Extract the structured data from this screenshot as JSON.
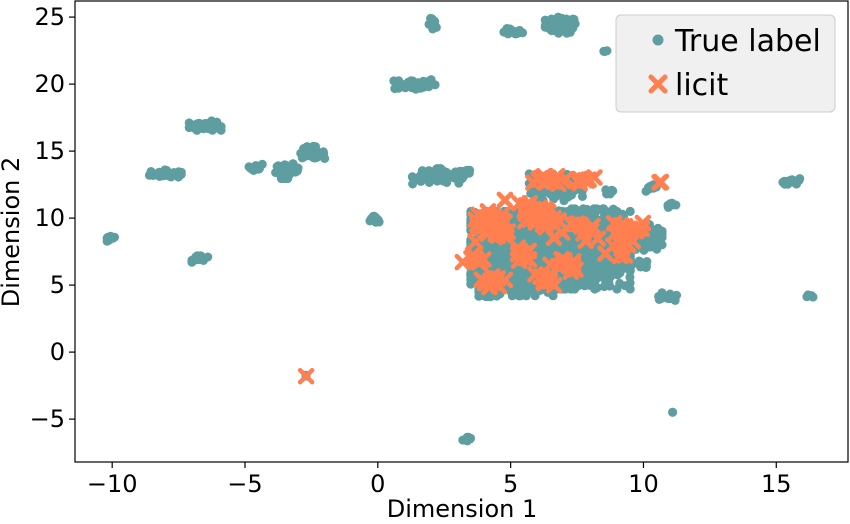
{
  "chart_data": {
    "type": "scatter",
    "xlabel": "Dimension 1",
    "ylabel": "Dimension 2",
    "xlim": [
      -11.4,
      17.7
    ],
    "ylim": [
      -8.2,
      26.2
    ],
    "xticks": [
      -10,
      -5,
      0,
      5,
      10,
      15
    ],
    "yticks": [
      -5,
      0,
      5,
      10,
      15,
      20,
      25
    ],
    "xtick_labels": [
      "−10",
      "−5",
      "0",
      "5",
      "10",
      "15"
    ],
    "ytick_labels": [
      "−5",
      "0",
      "5",
      "10",
      "15",
      "20",
      "25"
    ],
    "grid": false,
    "legend_position": "top-right",
    "series": [
      {
        "name": "True label",
        "marker": "circle",
        "color": "#5f9ea0",
        "clusters": [
          {
            "cx": 6.9,
            "cy": 24.4,
            "rx": 0.6,
            "ry": 0.6,
            "n": 70
          },
          {
            "cx": 5.0,
            "cy": 23.9,
            "rx": 0.45,
            "ry": 0.25,
            "n": 20
          },
          {
            "cx": 2.1,
            "cy": 24.4,
            "rx": 0.2,
            "ry": 0.5,
            "n": 12
          },
          {
            "cx": 1.4,
            "cy": 20.0,
            "rx": 0.8,
            "ry": 0.45,
            "n": 50
          },
          {
            "cx": -6.5,
            "cy": 16.9,
            "rx": 0.6,
            "ry": 0.35,
            "n": 45
          },
          {
            "cx": -8.0,
            "cy": 13.3,
            "rx": 0.6,
            "ry": 0.3,
            "n": 40
          },
          {
            "cx": -4.6,
            "cy": 13.8,
            "rx": 0.25,
            "ry": 0.25,
            "n": 12
          },
          {
            "cx": -3.4,
            "cy": 13.5,
            "rx": 0.45,
            "ry": 0.55,
            "n": 45
          },
          {
            "cx": -2.5,
            "cy": 14.9,
            "rx": 0.5,
            "ry": 0.45,
            "n": 30
          },
          {
            "cx": 2.5,
            "cy": 13.1,
            "rx": 1.2,
            "ry": 0.6,
            "n": 90
          },
          {
            "cx": -0.1,
            "cy": 9.9,
            "rx": 0.2,
            "ry": 0.25,
            "n": 12
          },
          {
            "cx": -10.1,
            "cy": 8.4,
            "rx": 0.25,
            "ry": 0.25,
            "n": 12
          },
          {
            "cx": -6.7,
            "cy": 7.0,
            "rx": 0.3,
            "ry": 0.3,
            "n": 14
          },
          {
            "cx": 6.5,
            "cy": 7.6,
            "rx": 3.0,
            "ry": 2.9,
            "n": 1500
          },
          {
            "cx": 5.2,
            "cy": 5.8,
            "rx": 1.4,
            "ry": 1.6,
            "n": 250
          },
          {
            "cx": 7.9,
            "cy": 9.2,
            "rx": 1.8,
            "ry": 1.5,
            "n": 300
          },
          {
            "cx": 9.7,
            "cy": 8.6,
            "rx": 1.0,
            "ry": 1.0,
            "n": 120
          },
          {
            "cx": 6.7,
            "cy": 12.3,
            "rx": 1.0,
            "ry": 1.0,
            "n": 110
          },
          {
            "cx": 4.2,
            "cy": 4.3,
            "rx": 0.4,
            "ry": 0.3,
            "n": 20
          },
          {
            "cx": 10.9,
            "cy": 4.1,
            "rx": 0.4,
            "ry": 0.35,
            "n": 14
          },
          {
            "cx": 11.1,
            "cy": 11.0,
            "rx": 0.25,
            "ry": 0.2,
            "n": 8
          },
          {
            "cx": 10.3,
            "cy": 12.3,
            "rx": 0.3,
            "ry": 0.3,
            "n": 10
          },
          {
            "cx": 8.7,
            "cy": 12.0,
            "rx": 0.25,
            "ry": 0.2,
            "n": 6
          },
          {
            "cx": 8.6,
            "cy": 22.5,
            "rx": 0.1,
            "ry": 0.1,
            "n": 3
          },
          {
            "cx": 15.7,
            "cy": 12.7,
            "rx": 0.45,
            "ry": 0.25,
            "n": 14
          },
          {
            "cx": 16.3,
            "cy": 4.2,
            "rx": 0.15,
            "ry": 0.15,
            "n": 6
          },
          {
            "cx": 11.1,
            "cy": -4.5,
            "rx": 0.05,
            "ry": 0.05,
            "n": 2
          },
          {
            "cx": 3.4,
            "cy": -6.5,
            "rx": 0.2,
            "ry": 0.15,
            "n": 6
          },
          {
            "cx": -2.7,
            "cy": -1.8,
            "rx": 0.08,
            "ry": 0.08,
            "n": 2
          },
          {
            "cx": 10.0,
            "cy": 6.5,
            "rx": 0.5,
            "ry": 0.3,
            "n": 12
          }
        ]
      },
      {
        "name": "licit",
        "marker": "x",
        "color": "#ff7f50",
        "clusters": [
          {
            "cx": 4.3,
            "cy": 9.3,
            "rx": 0.75,
            "ry": 1.2,
            "n": 35
          },
          {
            "cx": 4.4,
            "cy": 5.2,
            "rx": 0.55,
            "ry": 0.5,
            "n": 10
          },
          {
            "cx": 5.9,
            "cy": 10.2,
            "rx": 0.9,
            "ry": 0.9,
            "n": 30
          },
          {
            "cx": 6.6,
            "cy": 12.8,
            "rx": 1.0,
            "ry": 0.6,
            "n": 14
          },
          {
            "cx": 7.3,
            "cy": 9.3,
            "rx": 1.3,
            "ry": 1.1,
            "n": 18
          },
          {
            "cx": 9.5,
            "cy": 9.3,
            "rx": 0.8,
            "ry": 0.6,
            "n": 14
          },
          {
            "cx": 9.0,
            "cy": 7.7,
            "rx": 0.9,
            "ry": 0.6,
            "n": 10
          },
          {
            "cx": 6.2,
            "cy": 5.3,
            "rx": 0.5,
            "ry": 0.5,
            "n": 8
          },
          {
            "cx": 7.2,
            "cy": 6.6,
            "rx": 0.7,
            "ry": 0.6,
            "n": 10
          },
          {
            "cx": 3.6,
            "cy": 7.0,
            "rx": 0.4,
            "ry": 0.5,
            "n": 8
          },
          {
            "cx": 5.4,
            "cy": 7.6,
            "rx": 0.7,
            "ry": 0.9,
            "n": 10
          },
          {
            "cx": 10.6,
            "cy": 12.7,
            "rx": 0.1,
            "ry": 0.1,
            "n": 2
          },
          {
            "cx": 4.8,
            "cy": 11.4,
            "rx": 0.1,
            "ry": 0.1,
            "n": 2
          },
          {
            "cx": 8.0,
            "cy": 12.9,
            "rx": 0.3,
            "ry": 0.2,
            "n": 4
          },
          {
            "cx": -2.7,
            "cy": -1.8,
            "rx": 0.0,
            "ry": 0.0,
            "n": 1
          }
        ]
      }
    ]
  }
}
